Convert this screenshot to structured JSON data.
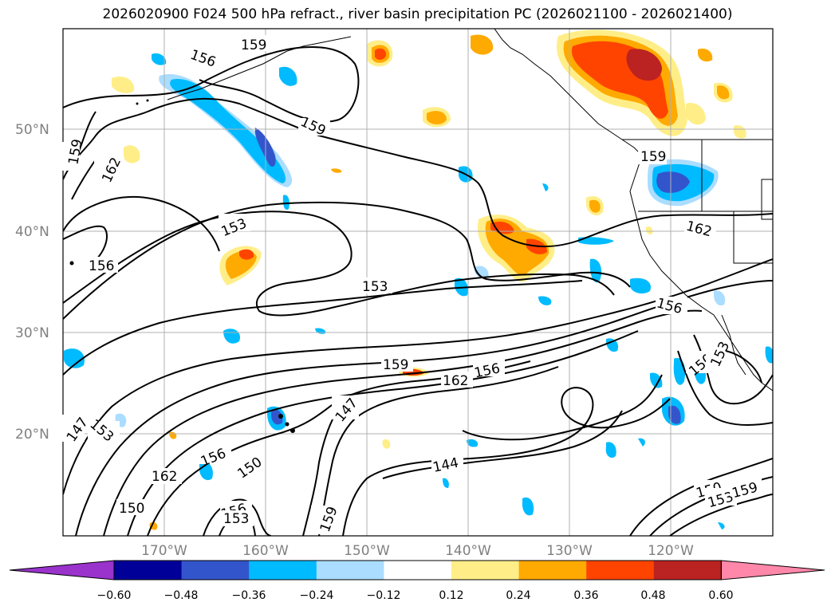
{
  "title": "2026020900 F024 500 hPa refract., river basin precipitation PC (2026021100 - 2026021400)",
  "longitude_labels": [
    "170°W",
    "160°W",
    "150°W",
    "140°W",
    "130°W",
    "120°W"
  ],
  "latitude_labels": [
    "50°N",
    "40°N",
    "30°N",
    "20°N"
  ],
  "colorbar": {
    "ticks": [
      "−0.60",
      "−0.48",
      "−0.36",
      "−0.24",
      "−0.12",
      "0.12",
      "0.24",
      "0.36",
      "0.48",
      "0.60"
    ],
    "colors": [
      "#9933cc",
      "#000099",
      "#3355cc",
      "#00bbff",
      "#aaddff",
      "#ffffff",
      "#ffee88",
      "#ffaa00",
      "#ff4400",
      "#bb2222",
      "#ff88aa"
    ]
  },
  "contour_labels": [
    "159",
    "156",
    "159",
    "159",
    "162",
    "159",
    "153",
    "156",
    "153",
    "162",
    "156",
    "159",
    "156",
    "162",
    "147",
    "144",
    "153",
    "156",
    "162",
    "150",
    "150",
    "147",
    "159",
    "150",
    "153",
    "159",
    "156",
    "153",
    "150",
    "153"
  ]
}
